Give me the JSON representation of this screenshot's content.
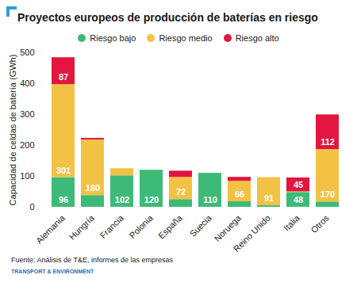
{
  "chart_data": {
    "type": "bar",
    "title": "Proyectos europeos de producción de baterías en riesgo",
    "y_label": "Capacidad de celdas de batería (GWh)",
    "categories": [
      "Alemania",
      "Hungría",
      "Francia",
      "Polonia",
      "España",
      "Suecia",
      "Noruega",
      "Reino Unido",
      "Italia",
      "Otros"
    ],
    "series": [
      {
        "name": "Riesgo bajo",
        "color": "#3dba78",
        "values": [
          96,
          38,
          102,
          120,
          25,
          110,
          18,
          5,
          48,
          17
        ],
        "value_labels": [
          "96",
          null,
          "102",
          "120",
          null,
          "110",
          null,
          null,
          "48",
          null
        ]
      },
      {
        "name": "Riesgo medio",
        "color": "#f3c244",
        "values": [
          301,
          180,
          23,
          0,
          72,
          0,
          66,
          91,
          2,
          170
        ],
        "value_labels": [
          "301",
          "180",
          null,
          null,
          "72",
          null,
          "66",
          "91",
          null,
          "170"
        ]
      },
      {
        "name": "Riesgo alto",
        "color": "#e2163f",
        "values": [
          87,
          5,
          0,
          0,
          20,
          0,
          13,
          0,
          45,
          112
        ],
        "value_labels": [
          "87",
          null,
          null,
          null,
          null,
          null,
          null,
          null,
          "45",
          "112"
        ]
      }
    ],
    "ylim": [
      0,
      500
    ],
    "yticks": [
      0,
      100,
      200,
      300,
      400,
      500
    ],
    "stacked": true,
    "data_labels": true,
    "legend": "top",
    "grid": false,
    "source": "Fuente: Análisis de T&E, informes de las empresas",
    "logo": "TRANSPORT & ENVIRONMENT"
  }
}
